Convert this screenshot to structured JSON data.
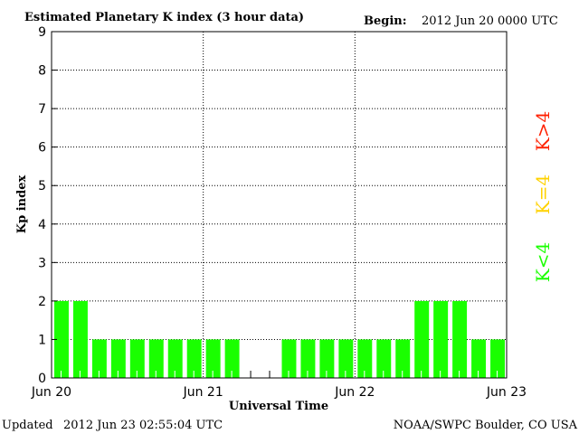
{
  "header": {
    "title": "Estimated Planetary K index (3 hour data)",
    "begin_label": "Begin:",
    "begin_value": "2012 Jun 20 0000 UTC"
  },
  "footer": {
    "updated_label": "Updated",
    "updated_value": "2012 Jun 23 02:55:04 UTC",
    "source": "NOAA/SWPC Boulder, CO USA"
  },
  "legend": [
    {
      "label": "K>4",
      "color": "#ff2000"
    },
    {
      "label": "K=4",
      "color": "#ffd200"
    },
    {
      "label": "K<4",
      "color": "#1aff00"
    }
  ],
  "chart_data": {
    "type": "bar",
    "title": "Estimated Planetary K index (3 hour data)",
    "xlabel": "Universal Time",
    "ylabel": "Kp index",
    "ylim": [
      0,
      9
    ],
    "yticks": [
      "0",
      "1",
      "2",
      "3",
      "4",
      "5",
      "6",
      "7",
      "8",
      "9"
    ],
    "xticks": [
      "Jun 20",
      "Jun 21",
      "Jun 22",
      "Jun 23"
    ],
    "grid": true,
    "bar_color": "#1aff00",
    "values": [
      2,
      2,
      1,
      1,
      1,
      1,
      1,
      1,
      1,
      1,
      null,
      null,
      1,
      1,
      1,
      1,
      1,
      1,
      1,
      2,
      2,
      2,
      1,
      1
    ]
  }
}
